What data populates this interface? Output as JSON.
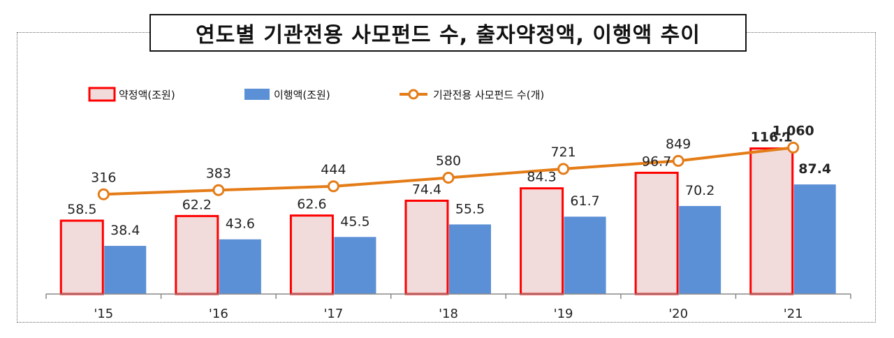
{
  "title": "연도별 기관전용 사모펀드 수, 출자약정액, 이행액 추이",
  "colors": {
    "commitment_fill": "#F2DCDB",
    "commitment_border": "#FF0000",
    "executed": "#5B8FD6",
    "line": "#E47C17"
  },
  "chart_data": {
    "type": "bar",
    "categories": [
      "'15",
      "'16",
      "'17",
      "'18",
      "'19",
      "'20",
      "'21"
    ],
    "series": [
      {
        "name": "약정액(조원)",
        "type": "bar",
        "values": [
          58.5,
          62.2,
          62.6,
          74.4,
          84.3,
          96.7,
          116.1
        ],
        "labels": [
          "58.5",
          "62.2",
          "62.6",
          "74.4",
          "84.3",
          "96.7",
          "116.1"
        ]
      },
      {
        "name": "이행액(조원)",
        "type": "bar",
        "values": [
          38.4,
          43.6,
          45.5,
          55.5,
          61.7,
          70.2,
          87.4
        ],
        "labels": [
          "38.4",
          "43.6",
          "45.5",
          "55.5",
          "61.7",
          "70.2",
          "87.4"
        ]
      },
      {
        "name": "기관전용 사모펀드 수(개)",
        "type": "line",
        "values": [
          316,
          383,
          444,
          580,
          721,
          849,
          1060
        ],
        "labels": [
          "316",
          "383",
          "444",
          "580",
          "721",
          "849",
          "1,060"
        ]
      }
    ],
    "bar_ylim": [
      0,
      200
    ],
    "line_ylim": [
      -1270,
      2720
    ],
    "legend_position": "top-left",
    "grid": false
  }
}
